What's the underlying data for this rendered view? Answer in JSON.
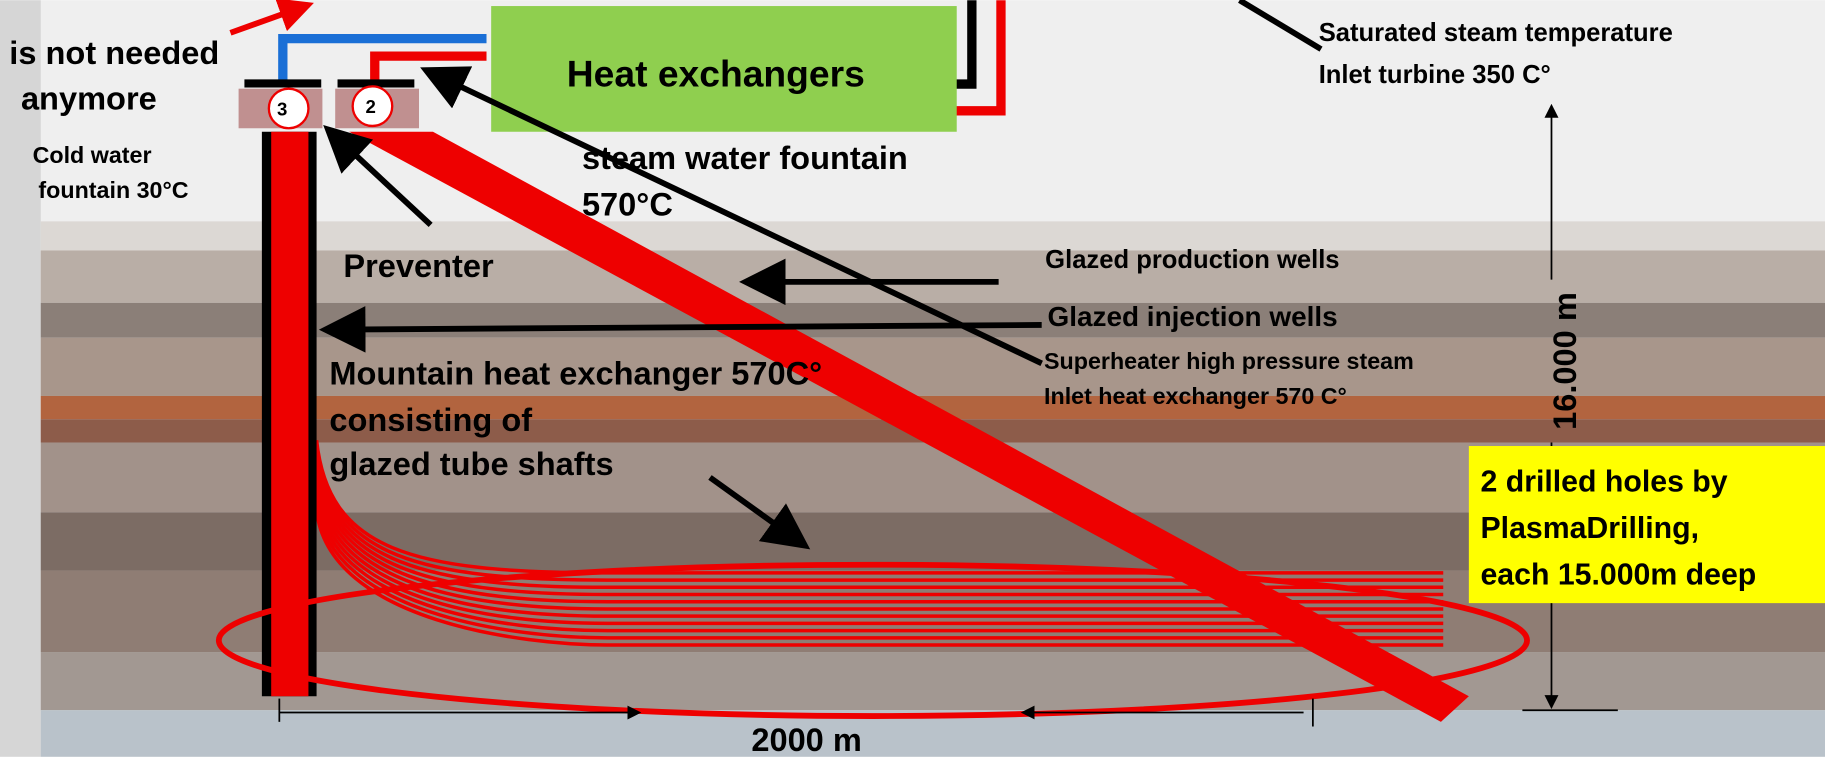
{
  "note_top_left": [
    "is not needed",
    "anymore"
  ],
  "heat_exchangers": "Heat exchangers",
  "turbine_note": [
    "Saturated steam temperature",
    "Inlet turbine 350 C°"
  ],
  "cold_water": [
    "Cold water",
    "fountain 30°C"
  ],
  "wellheads": [
    "3",
    "2"
  ],
  "steam_fountain": [
    "steam water fountain",
    "570°C"
  ],
  "preventer": "Preventer",
  "production_wells": "Glazed production wells",
  "injection_wells": "Glazed injection wells",
  "superheater": [
    "Superheater high pressure steam",
    "Inlet heat exchanger 570 C°"
  ],
  "mountain": [
    "Mountain heat exchanger 570C°",
    "consisting of",
    "glazed tube shafts"
  ],
  "depth": "16.000 m",
  "drilled_holes": [
    "2 drilled holes by",
    "PlasmaDrilling,",
    "each 15.000m deep"
  ],
  "width": "2000 m"
}
